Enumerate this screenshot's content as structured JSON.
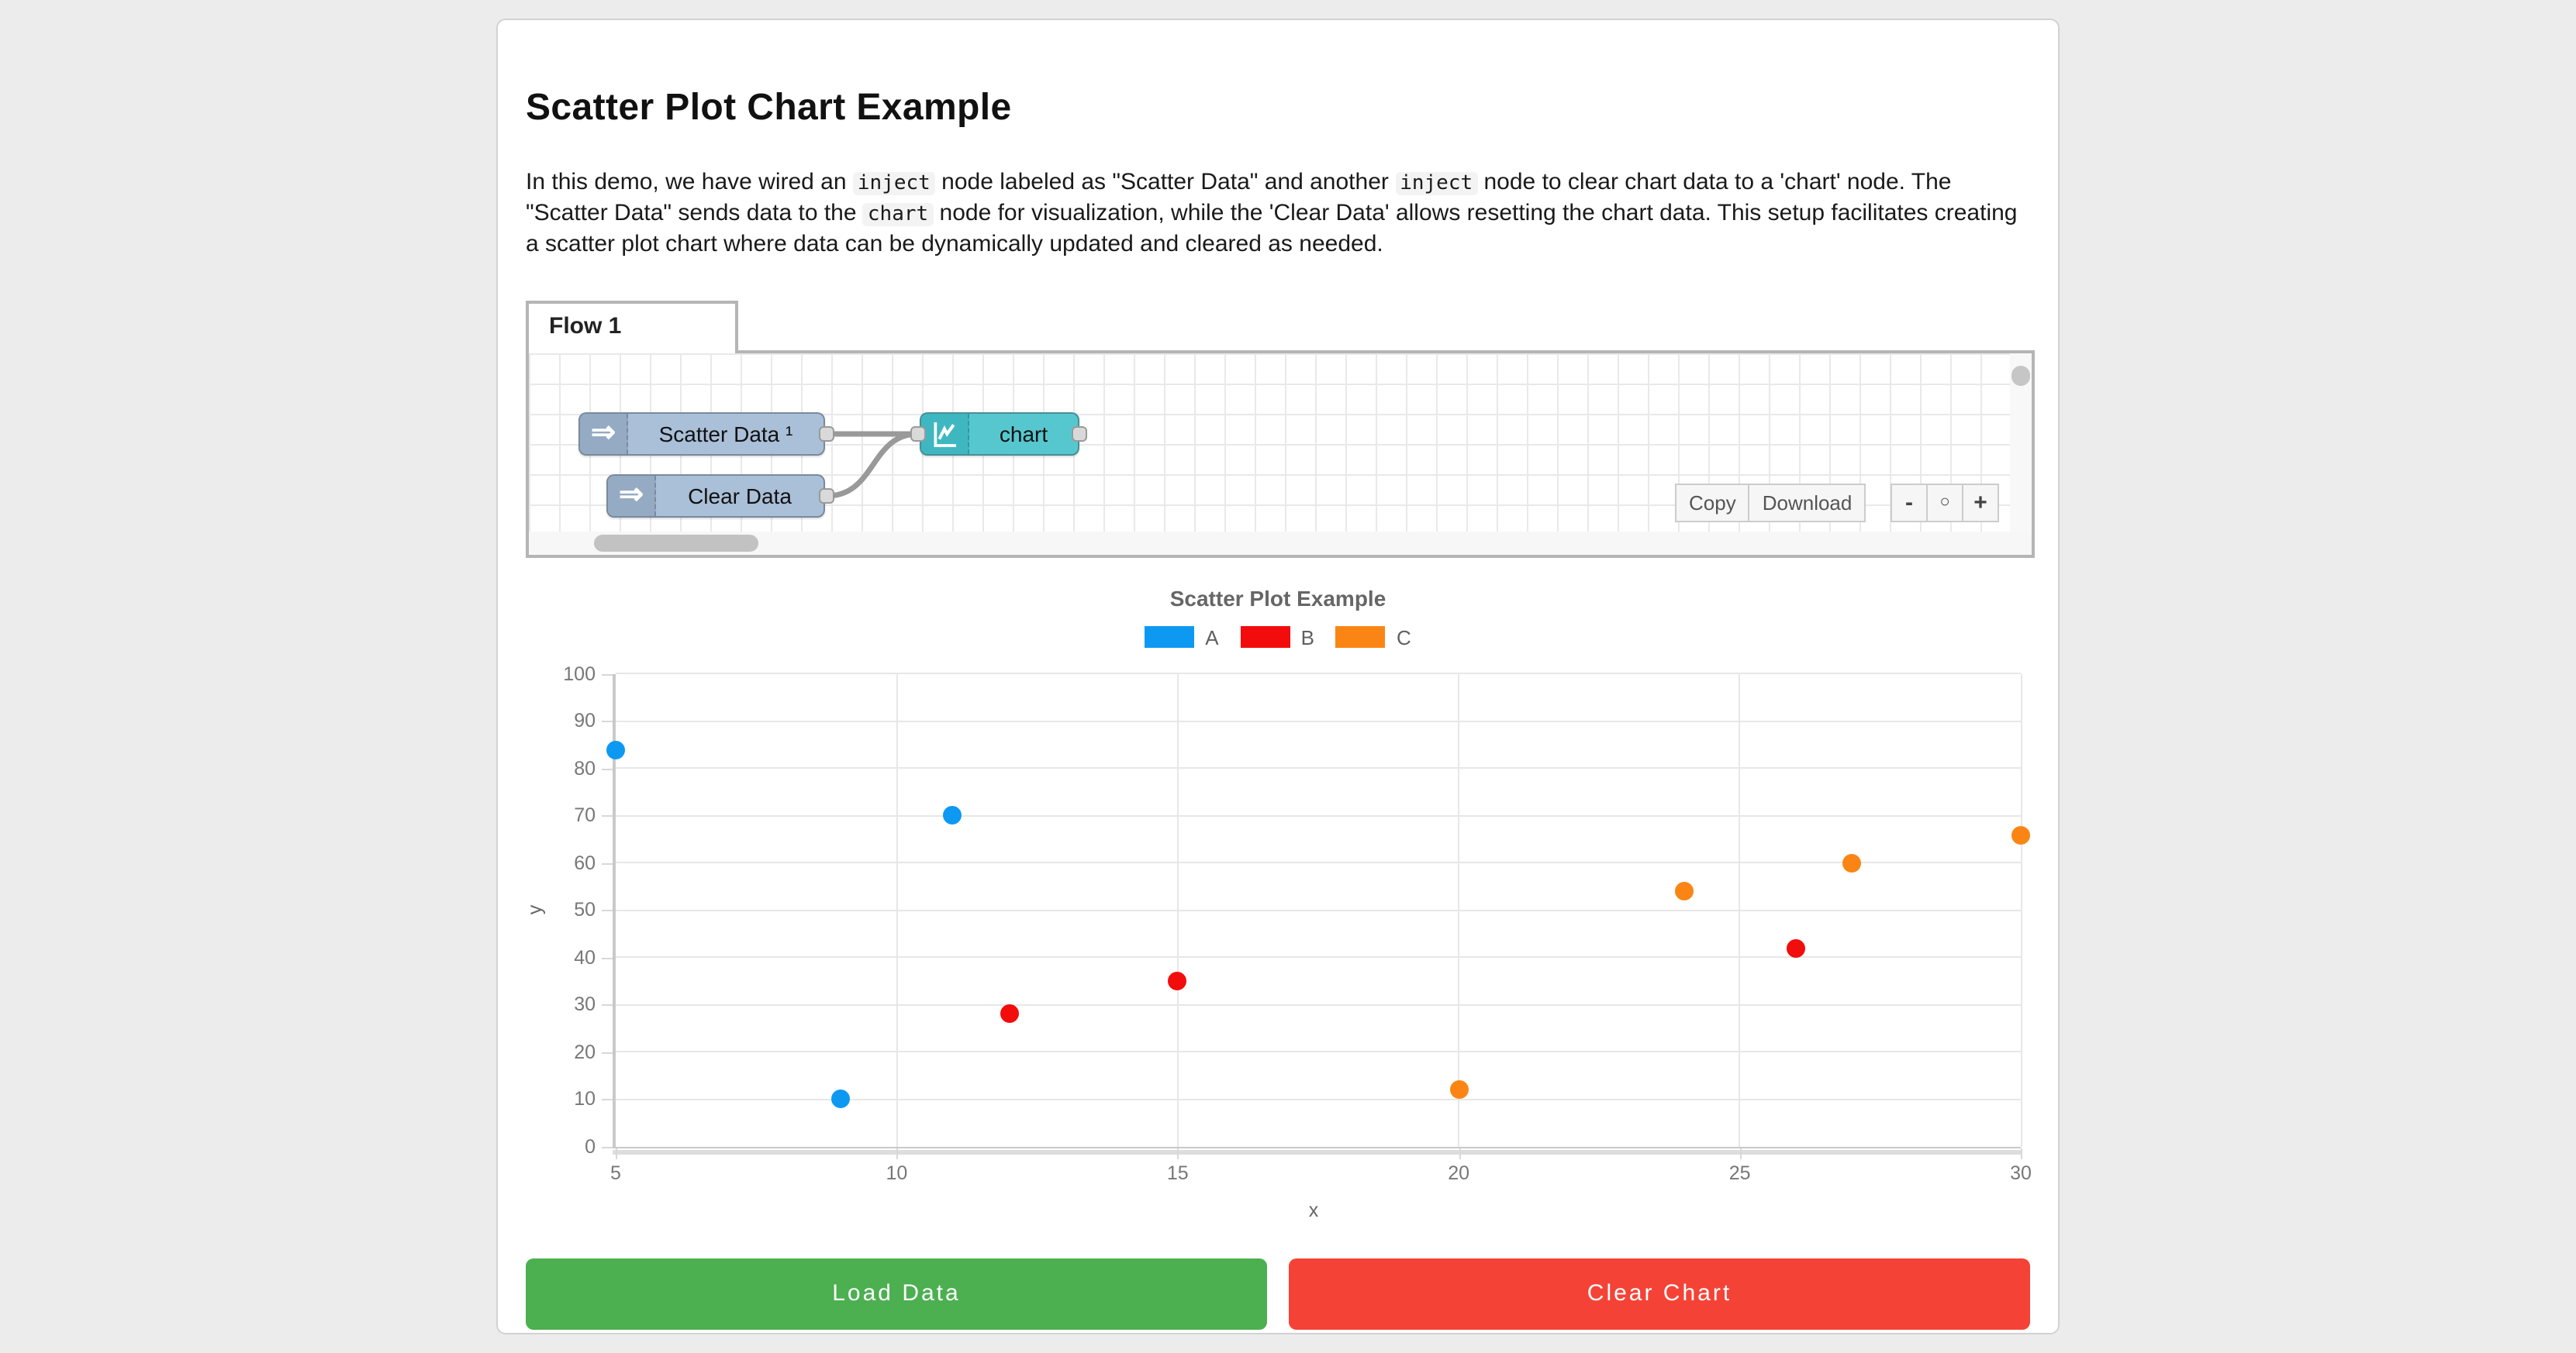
{
  "page": {
    "title": "Scatter Plot Chart Example"
  },
  "description": {
    "segments": [
      {
        "text": "In this demo, we have wired an "
      },
      {
        "code": "inject"
      },
      {
        "text": " node labeled as \"Scatter Data\" and another "
      },
      {
        "code": "inject"
      },
      {
        "text": " node to clear chart data to a 'chart' node. The \"Scatter Data\" sends data to the "
      },
      {
        "code": "chart"
      },
      {
        "text": " node for visualization, while the 'Clear Data' allows resetting the chart data. This setup facilitates creating a scatter plot chart where data can be dynamically updated and cleared as needed."
      }
    ]
  },
  "flow": {
    "tab_label": "Flow 1",
    "nodes": [
      {
        "id": "scatter-inject",
        "type": "inject",
        "label": "Scatter Data ¹"
      },
      {
        "id": "clear-inject",
        "type": "inject",
        "label": "Clear Data"
      },
      {
        "id": "chart-node",
        "type": "chart",
        "label": "chart"
      }
    ],
    "colors": {
      "inject_body": "#aabfd8",
      "inject_icon_bg": "#95aac3",
      "chart_body": "#57c7cf",
      "chart_icon_bg": "#3fb7c1",
      "wire": "#999999"
    },
    "toolbar": {
      "copy_label": "Copy",
      "download_label": "Download",
      "zoom_out_label": "-",
      "zoom_reset_label": "○",
      "zoom_in_label": "+"
    }
  },
  "chart_data": {
    "type": "scatter",
    "title": "Scatter Plot Example",
    "xlabel": "x",
    "ylabel": "y",
    "xlim": [
      5,
      30
    ],
    "ylim": [
      0,
      100
    ],
    "x_ticks": [
      5,
      10,
      15,
      20,
      25,
      30
    ],
    "y_ticks": [
      0,
      10,
      20,
      30,
      40,
      50,
      60,
      70,
      80,
      90,
      100
    ],
    "grid": true,
    "legend_position": "top",
    "series": [
      {
        "name": "A",
        "color": "#0d99f2",
        "points": [
          [
            5,
            84
          ],
          [
            9,
            10
          ],
          [
            11,
            70
          ]
        ]
      },
      {
        "name": "B",
        "color": "#f30c0c",
        "points": [
          [
            12,
            28
          ],
          [
            15,
            35
          ],
          [
            26,
            42
          ]
        ]
      },
      {
        "name": "C",
        "color": "#fb8514",
        "points": [
          [
            20,
            12
          ],
          [
            24,
            54
          ],
          [
            27,
            60
          ],
          [
            30,
            66
          ]
        ]
      }
    ]
  },
  "buttons": {
    "load": {
      "label": "Load Data",
      "color": "#4caf50"
    },
    "clear": {
      "label": "Clear Chart",
      "color": "#f44336"
    }
  }
}
